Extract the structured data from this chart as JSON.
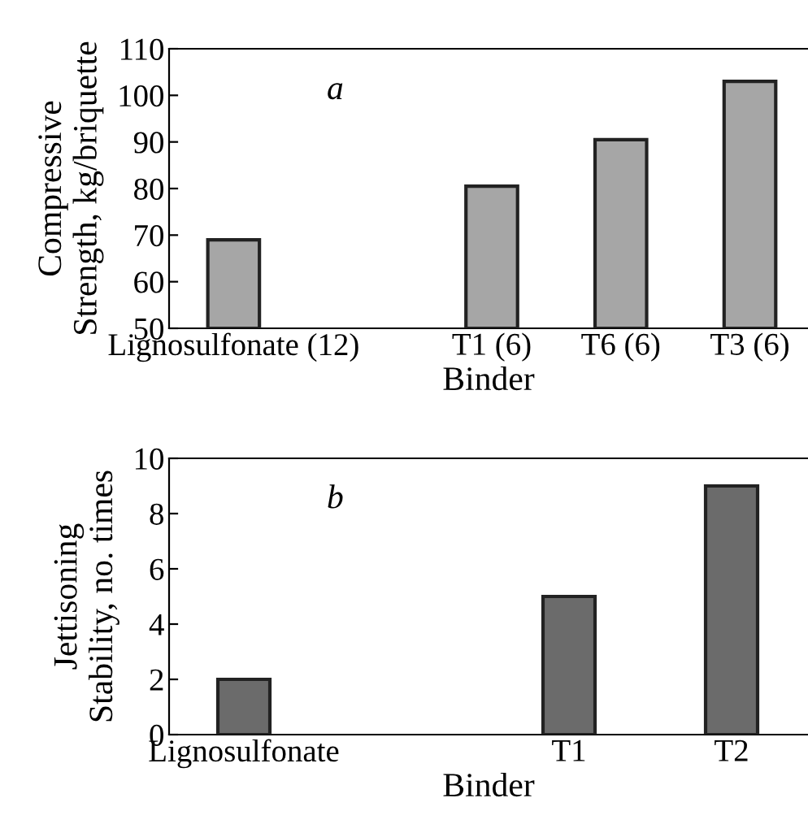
{
  "chart_data": [
    {
      "type": "bar",
      "annotations": [
        {
          "text": "a"
        }
      ],
      "xlabel": "Binder",
      "ylabel": "Compressive\nStrength, kg/briquette",
      "categories": [
        "Lignosulfonate (12)",
        null,
        "T1 (6)",
        "T6 (6)",
        "T3 (6)"
      ],
      "values": [
        69,
        null,
        80.5,
        90.5,
        103
      ],
      "color": "#a6a6a6",
      "ylim": [
        50,
        110
      ],
      "yticks": [
        50,
        60,
        70,
        80,
        90,
        100,
        110
      ],
      "grid": false,
      "legend": false
    },
    {
      "type": "bar",
      "annotations": [
        {
          "text": "b"
        }
      ],
      "xlabel": "Binder",
      "ylabel": "Jettisoning\nStability, no. times",
      "categories": [
        "Lignosulfonate",
        null,
        "T1",
        "T2"
      ],
      "values": [
        2,
        null,
        5,
        9
      ],
      "color": "#6b6b6b",
      "ylim": [
        0,
        10
      ],
      "yticks": [
        0,
        2,
        4,
        6,
        8,
        10
      ],
      "grid": false,
      "legend": false
    }
  ]
}
